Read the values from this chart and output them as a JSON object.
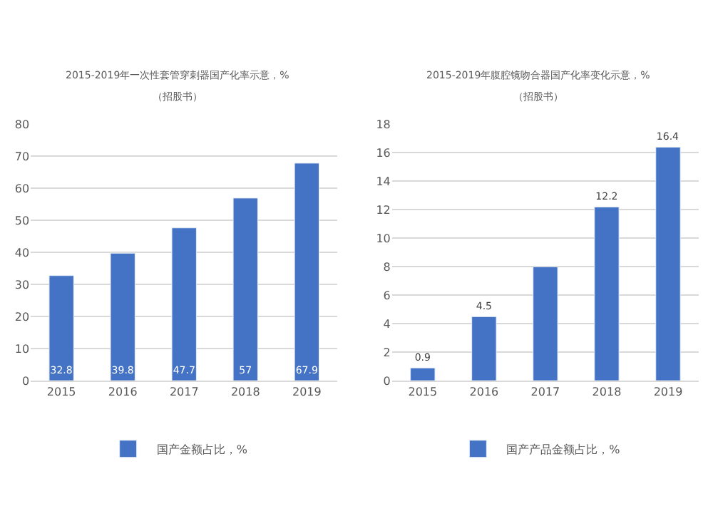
{
  "chart_data": [
    {
      "type": "bar",
      "title": "2015-2019年一次性套管穿刺器国产化率示意，%",
      "subtitle": "（招股书）",
      "categories": [
        "2015",
        "2016",
        "2017",
        "2018",
        "2019"
      ],
      "series": [
        {
          "name": "国产金额占比，%",
          "color": "#4472c4",
          "values": [
            32.8,
            39.8,
            47.7,
            57,
            67.9
          ]
        }
      ],
      "ylim": [
        0,
        80
      ],
      "yticks": [
        0,
        10,
        20,
        30,
        40,
        50,
        60,
        70,
        80
      ],
      "grid": "y",
      "legend": "bottom",
      "data_labels": true
    },
    {
      "type": "bar",
      "title": "2015-2019年腹腔镜吻合器国产化率变化示意，%",
      "subtitle": "（招股书）",
      "categories": [
        "2015",
        "2016",
        "2017",
        "2018",
        "2019"
      ],
      "series": [
        {
          "name": "国产产品金额占比，%",
          "color": "#4472c4",
          "values": [
            0.9,
            4.5,
            8,
            12.2,
            16.4
          ],
          "value_labels": [
            "0.9",
            "4.5",
            null,
            "12.2",
            "16.4"
          ]
        }
      ],
      "ylim": [
        0,
        18
      ],
      "yticks": [
        0,
        2,
        4,
        6,
        8,
        10,
        12,
        14,
        16,
        18
      ],
      "grid": "y",
      "legend": "bottom"
    }
  ]
}
